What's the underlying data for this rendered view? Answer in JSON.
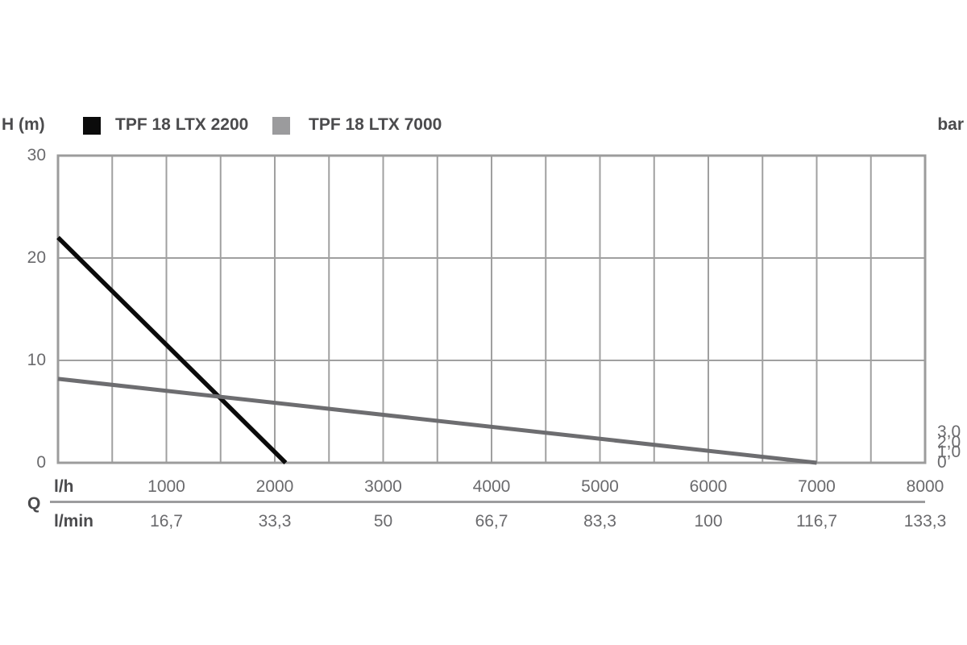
{
  "header": {
    "left_axis_label": "H (m)",
    "right_axis_label": "bar"
  },
  "chart_data": {
    "type": "line",
    "title": "",
    "x_axis": {
      "quantity_label": "Q",
      "primary_unit": "l/h",
      "secondary_unit": "l/min",
      "range": [
        0,
        8000
      ],
      "gridline_step": 500,
      "tick_values": [
        1000,
        2000,
        3000,
        4000,
        5000,
        6000,
        7000,
        8000
      ],
      "tick_labels_lh": [
        "1000",
        "2000",
        "3000",
        "4000",
        "5000",
        "6000",
        "7000",
        "8000"
      ],
      "tick_labels_lmin": [
        "16,7",
        "33,3",
        "50",
        "66,7",
        "83,3",
        "100",
        "116,7",
        "133,3"
      ]
    },
    "y_axis_left": {
      "unit": "H (m)",
      "range": [
        0,
        30
      ],
      "gridline_step": 10,
      "tick_values": [
        30,
        20,
        10,
        0
      ],
      "tick_labels": [
        "30",
        "20",
        "10",
        "0"
      ]
    },
    "y_axis_right": {
      "unit": "bar",
      "range": [
        0,
        3
      ],
      "tick_values": [
        3,
        2,
        1,
        0
      ],
      "tick_labels": [
        "3,0",
        "2,0",
        "1,0",
        "0"
      ]
    },
    "series": [
      {
        "name": "TPF 18 LTX 2200",
        "color": "#0b0b0b",
        "stroke_width": 5.5,
        "points": [
          [
            0,
            22
          ],
          [
            2100,
            0
          ]
        ]
      },
      {
        "name": "TPF 18 LTX 7000",
        "color": "#6d6d70",
        "stroke_width": 5.0,
        "points": [
          [
            0,
            8.2
          ],
          [
            7000,
            0
          ]
        ]
      }
    ],
    "legend": [
      {
        "label": "TPF 18 LTX 2200",
        "swatch_color": "#0b0b0b"
      },
      {
        "label": "TPF 18 LTX 7000",
        "swatch_color": "#9b9b9d"
      }
    ],
    "grid": {
      "line_color": "#a0a0a0",
      "border_color": "#9c9c9c"
    }
  },
  "colors": {
    "background": "#ffffff",
    "label_text": "#4b4b4d",
    "tick_text": "#6a6a6d"
  }
}
